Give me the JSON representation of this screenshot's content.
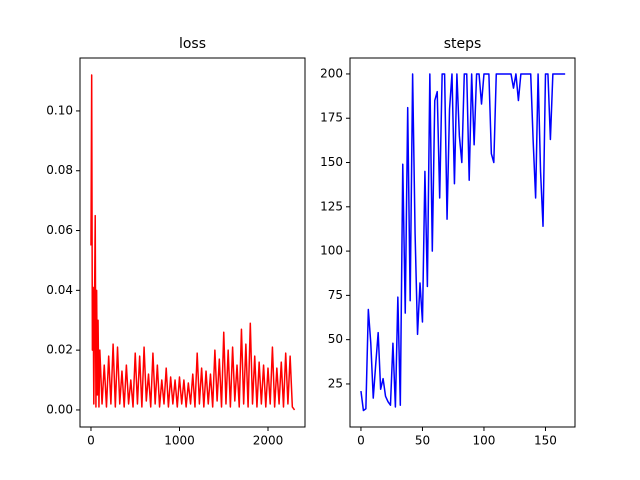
{
  "chart_data": [
    {
      "type": "line",
      "title": "loss",
      "x": [
        0,
        8,
        16,
        24,
        32,
        40,
        48,
        56,
        64,
        72,
        80,
        90,
        100,
        125,
        150,
        175,
        200,
        225,
        250,
        275,
        300,
        325,
        350,
        375,
        400,
        425,
        450,
        475,
        500,
        525,
        550,
        575,
        600,
        625,
        650,
        675,
        700,
        725,
        750,
        775,
        800,
        825,
        850,
        875,
        900,
        925,
        950,
        975,
        1000,
        1025,
        1050,
        1075,
        1100,
        1125,
        1150,
        1175,
        1200,
        1225,
        1250,
        1275,
        1300,
        1325,
        1350,
        1375,
        1400,
        1425,
        1450,
        1475,
        1500,
        1525,
        1550,
        1575,
        1600,
        1625,
        1650,
        1675,
        1700,
        1725,
        1750,
        1775,
        1800,
        1825,
        1850,
        1875,
        1900,
        1925,
        1950,
        1975,
        2000,
        2025,
        2050,
        2075,
        2100,
        2125,
        2150,
        2175,
        2200,
        2225,
        2250,
        2275,
        2300
      ],
      "series": [
        {
          "color": "#ff0000",
          "values": [
            0.055,
            0.112,
            0.02,
            0.041,
            0.002,
            0.035,
            0.065,
            0.001,
            0.04,
            0.005,
            0.03,
            0.001,
            0.02,
            0.002,
            0.015,
            0.001,
            0.018,
            0.002,
            0.022,
            0.001,
            0.021,
            0.002,
            0.013,
            0.001,
            0.015,
            0.002,
            0.01,
            0.001,
            0.019,
            0.002,
            0.018,
            0.001,
            0.021,
            0.003,
            0.012,
            0.001,
            0.019,
            0.002,
            0.015,
            0.001,
            0.01,
            0.002,
            0.014,
            0.001,
            0.011,
            0.002,
            0.01,
            0.001,
            0.011,
            0.002,
            0.01,
            0.001,
            0.009,
            0.002,
            0.012,
            0.001,
            0.019,
            0.002,
            0.014,
            0.001,
            0.013,
            0.002,
            0.012,
            0.001,
            0.02,
            0.003,
            0.017,
            0.001,
            0.026,
            0.002,
            0.02,
            0.001,
            0.021,
            0.003,
            0.015,
            0.001,
            0.027,
            0.002,
            0.022,
            0.001,
            0.029,
            0.002,
            0.018,
            0.001,
            0.016,
            0.002,
            0.015,
            0.001,
            0.014,
            0.002,
            0.021,
            0.001,
            0.014,
            0.002,
            0.016,
            0.001,
            0.019,
            0.002,
            0.018,
            0.001,
            0.0
          ]
        }
      ],
      "xlim": [
        -124,
        2418
      ],
      "xticks": [
        0,
        1000,
        2000
      ],
      "ylim": [
        -0.0057,
        0.1177
      ],
      "yticks": [
        {
          "value": 0,
          "label": "0.00"
        },
        {
          "value": 0.02,
          "label": "0.02"
        },
        {
          "value": 0.04,
          "label": "0.04"
        },
        {
          "value": 0.06,
          "label": "0.06"
        },
        {
          "value": 0.08,
          "label": "0.08"
        },
        {
          "value": 0.1,
          "label": "0.10"
        }
      ]
    },
    {
      "type": "line",
      "title": "steps",
      "x": [
        0,
        2,
        4,
        6,
        8,
        10,
        12,
        14,
        16,
        18,
        20,
        22,
        24,
        26,
        28,
        30,
        32,
        34,
        36,
        38,
        40,
        42,
        44,
        46,
        48,
        50,
        52,
        54,
        56,
        58,
        60,
        62,
        64,
        66,
        68,
        70,
        72,
        74,
        76,
        78,
        80,
        82,
        84,
        86,
        88,
        90,
        92,
        94,
        96,
        98,
        100,
        102,
        104,
        106,
        108,
        110,
        112,
        114,
        116,
        118,
        120,
        122,
        124,
        126,
        128,
        130,
        132,
        134,
        136,
        138,
        140,
        142,
        144,
        146,
        148,
        150,
        152,
        154,
        156,
        158,
        160,
        162,
        164,
        166
      ],
      "series": [
        {
          "color": "#0000ff",
          "values": [
            21,
            10,
            11,
            67,
            48,
            17,
            36,
            54,
            22,
            28,
            18,
            15,
            13,
            48,
            12,
            74,
            13,
            149,
            65,
            181,
            72,
            200,
            110,
            53,
            82,
            60,
            145,
            80,
            200,
            100,
            185,
            190,
            130,
            200,
            200,
            118,
            180,
            200,
            138,
            200,
            165,
            150,
            200,
            200,
            140,
            200,
            160,
            200,
            200,
            183,
            200,
            200,
            200,
            155,
            150,
            200,
            200,
            200,
            200,
            200,
            200,
            200,
            192,
            200,
            185,
            200,
            200,
            200,
            200,
            200,
            162,
            130,
            200,
            145,
            114,
            200,
            200,
            163,
            200,
            200,
            200,
            200,
            200,
            200
          ]
        }
      ],
      "xlim": [
        -8.9,
        174
      ],
      "xticks": [
        0,
        50,
        100,
        150
      ],
      "ylim": [
        0.7,
        209
      ],
      "yticks": [
        25,
        50,
        75,
        100,
        125,
        150,
        175,
        200
      ]
    }
  ]
}
